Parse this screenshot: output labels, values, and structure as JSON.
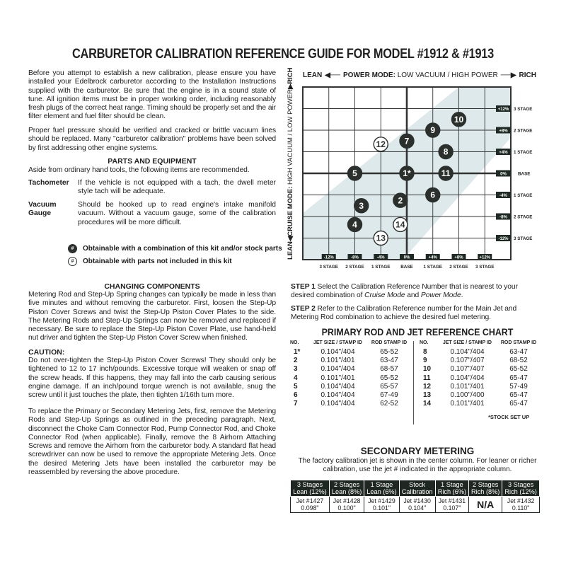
{
  "title": "CARBURETOR CALIBRATION REFERENCE GUIDE FOR MODEL #1912 & #1913",
  "intro": [
    "Before you attempt to establish a new calibration, please ensure you have installed your Edelbrock carburetor according to the Installation Instructions supplied with the carburetor. Be sure that the engine is in a sound state of tune. All ignition items must be in proper working order, including reasonably fresh plugs of the correct heat range. Timing should be properly set and the air filter element and fuel filter should be clean.",
    "Proper fuel pressure should be verified and cracked or brittle vacuum lines should be replaced. Many \"carburetor calibration\" problems have been solved by first addressing other engine systems."
  ],
  "parts": {
    "heading": "PARTS AND EQUIPMENT",
    "intro": "Aside from ordinary hand tools, the following items are recommended.",
    "items": [
      {
        "term": "Tachometer",
        "desc": "If the vehicle is not equipped with a tach, the dwell meter style tach will be adequate."
      },
      {
        "term": "Vacuum Gauge",
        "desc": "Should be hooked up to read engine's intake manifold vacuum. Without a vacuum gauge, some of the calibration procedures will be more difficult."
      }
    ]
  },
  "legend": [
    {
      "symbol": "#",
      "style": "solid",
      "text": "Obtainable with a combination of this kit and/or stock parts"
    },
    {
      "symbol": "#",
      "style": "hollow",
      "text": "Obtainable with parts not included in this kit"
    }
  ],
  "changing": {
    "heading": "CHANGING COMPONENTS",
    "para1": "Metering Rod and Step-Up Spring changes can typically be made in less than five minutes and without removing the carburetor. First, loosen the Step-Up Piston Cover Screws and twist the Step-Up Piston Cover Plates to the side. The Metering Rods and Step-Up Springs can now be removed and replaced if necessary. Be sure to replace the Step-Up Piston Cover Plate, use hand-held nut driver and tighten the Step-Up Piston Cover Screw when finished.",
    "caution_heading": "CAUTION:",
    "caution": "Do not over-tighten the Step-Up Piston Cover Screws! They should only be tightened to 12 to 17 inch/pounds. Excessive torque will weaken or snap off the screw heads. If this happens, they may fall into the carb causing serious engine damage. If an inch/pound torque wrench is not available, snug the screw until it just touches the plate, then tighten 1/16th turn more.",
    "para2": "To replace the Primary or Secondary Metering Jets, first, remove the Metering Rods and Step-Up Springs as outlined in the preceding paragraph. Next, disconnect the Choke Cam Connector Rod, Pump Connector Rod, and Choke Connector Rod (when applicable). Finally, remove the 8 Airhorn Attaching Screws and remove the Airhorn from the carburetor body. A standard flat head screwdriver can now be used to remove the appropriate Metering Jets. Once the desired Metering Jets have been installed the carburetor may be reassembled by reversing the above procedure."
  },
  "diagram": {
    "top_lean": "LEAN",
    "top_mode_bold": "POWER MODE:",
    "top_mode_light": "LOW VACUUM / HIGH POWER",
    "top_rich": "RICH",
    "left_lean": "LEAN",
    "left_mode_bold": "CRUISE MODE:",
    "left_mode_light": "HIGH VACUUM / LOW POWER",
    "left_rich": "RICH",
    "x_ticks": [
      {
        "value": -12,
        "box": "-12%",
        "stage": "3 STAGE"
      },
      {
        "value": -8,
        "box": "-8%",
        "stage": "2 STAGE"
      },
      {
        "value": -4,
        "box": "-4%",
        "stage": "1 STAGE"
      },
      {
        "value": 0,
        "box": "0%",
        "stage": "BASE"
      },
      {
        "value": 4,
        "box": "+4%",
        "stage": "1 STAGE"
      },
      {
        "value": 8,
        "box": "+8%",
        "stage": "2 STAGE"
      },
      {
        "value": 12,
        "box": "+12%",
        "stage": "3 STAGE"
      }
    ],
    "y_ticks": [
      {
        "value": 12,
        "box": "+12%",
        "stage": "3 STAGE"
      },
      {
        "value": 8,
        "box": "+8%",
        "stage": "2 STAGE"
      },
      {
        "value": 4,
        "box": "+4%",
        "stage": "1 STAGE"
      },
      {
        "value": 0,
        "box": "0%",
        "stage": "BASE"
      },
      {
        "value": -4,
        "box": "-4%",
        "stage": "1 STAGE"
      },
      {
        "value": -8,
        "box": "-8%",
        "stage": "2 STAGE"
      },
      {
        "value": -12,
        "box": "-12%",
        "stage": "3 STAGE"
      }
    ],
    "range": [
      -16,
      16
    ],
    "points": [
      {
        "label": "1*",
        "power": 0,
        "cruise": 0,
        "style": "solid"
      },
      {
        "label": "2",
        "power": -1,
        "cruise": -5,
        "style": "solid"
      },
      {
        "label": "3",
        "power": -7,
        "cruise": -6,
        "style": "solid"
      },
      {
        "label": "4",
        "power": -8,
        "cruise": -9.5,
        "style": "solid"
      },
      {
        "label": "5",
        "power": -8,
        "cruise": 0,
        "style": "solid"
      },
      {
        "label": "6",
        "power": 4,
        "cruise": -4,
        "style": "solid"
      },
      {
        "label": "7",
        "power": 0,
        "cruise": 6,
        "style": "solid"
      },
      {
        "label": "8",
        "power": 6,
        "cruise": 4,
        "style": "solid"
      },
      {
        "label": "9",
        "power": 4,
        "cruise": 8,
        "style": "solid"
      },
      {
        "label": "10",
        "power": 8,
        "cruise": 10,
        "style": "solid"
      },
      {
        "label": "11",
        "power": 6,
        "cruise": 0,
        "style": "solid"
      },
      {
        "label": "12",
        "power": -4,
        "cruise": 5.4,
        "style": "hollow"
      },
      {
        "label": "13",
        "power": -4,
        "cruise": -12,
        "style": "hollow"
      },
      {
        "label": "14",
        "power": -1,
        "cruise": -9.5,
        "style": "hollow"
      }
    ],
    "colors": {
      "dark": "#2b302d",
      "band": "#dde9ea",
      "label_box": "#1f2a24"
    }
  },
  "steps": [
    {
      "label": "STEP 1",
      "text_a": "Select the Calibration Reference Number that is nearest to your desired combination of ",
      "em1": "Cruise Mode",
      "and": " and ",
      "em2": "Power Mode",
      "end": "."
    },
    {
      "label": "STEP 2",
      "text": "Refer to the Calibration Reference number for the Main Jet and Metering Rod combination to achieve the desired fuel metering."
    }
  ],
  "primary": {
    "title": "PRIMARY ROD AND JET REFERENCE CHART",
    "headers": [
      "NO.",
      "JET SIZE / STAMP ID",
      "ROD STAMP ID"
    ],
    "left": [
      [
        "1*",
        "0.104\"/404",
        "65-52"
      ],
      [
        "2",
        "0.101\"/401",
        "63-47"
      ],
      [
        "3",
        "0.104\"/404",
        "68-57"
      ],
      [
        "4",
        "0.101\"/401",
        "65-52"
      ],
      [
        "5",
        "0.104\"/404",
        "65-57"
      ],
      [
        "6",
        "0.104\"/404",
        "67-49"
      ],
      [
        "7",
        "0.104\"/404",
        "62-52"
      ]
    ],
    "right": [
      [
        "8",
        "0.104\"/404",
        "63-47"
      ],
      [
        "9",
        "0.107\"/407",
        "68-52"
      ],
      [
        "10",
        "0.107\"/407",
        "65-52"
      ],
      [
        "11",
        "0.104\"/404",
        "65-47"
      ],
      [
        "12",
        "0.101\"/401",
        "57-49"
      ],
      [
        "13",
        "0.100\"/400",
        "65-47"
      ],
      [
        "14",
        "0.101\"/401",
        "65-47"
      ]
    ],
    "footnote": "*STOCK SET UP"
  },
  "secondary": {
    "title": "SECONDARY METERING",
    "desc": "The factory calibration jet is shown in the center column. For leaner or richer calibration, use the jet # indicated in the appropriate column.",
    "columns": [
      {
        "h1": "3 Stages",
        "h2": "Lean (12%)",
        "jet": "Jet #1427",
        "size": "0.098\""
      },
      {
        "h1": "2 Stages",
        "h2": "Lean (8%)",
        "jet": "Jet #1428",
        "size": "0.100\""
      },
      {
        "h1": "1 Stage",
        "h2": "Lean (6%)",
        "jet": "Jet #1429",
        "size": "0.101\""
      },
      {
        "h1": "Stock",
        "h2": "Calibration",
        "jet": "Jet #1430",
        "size": "0.104\""
      },
      {
        "h1": "1 Stage",
        "h2": "Rich (6%)",
        "jet": "Jet #1431",
        "size": "0.107\""
      },
      {
        "h1": "2 Stages",
        "h2": "Rich (8%)",
        "jet": "N/A",
        "size": ""
      },
      {
        "h1": "3 Stages",
        "h2": "Rich (12%)",
        "jet": "Jet #1432",
        "size": "0.110\""
      }
    ]
  }
}
